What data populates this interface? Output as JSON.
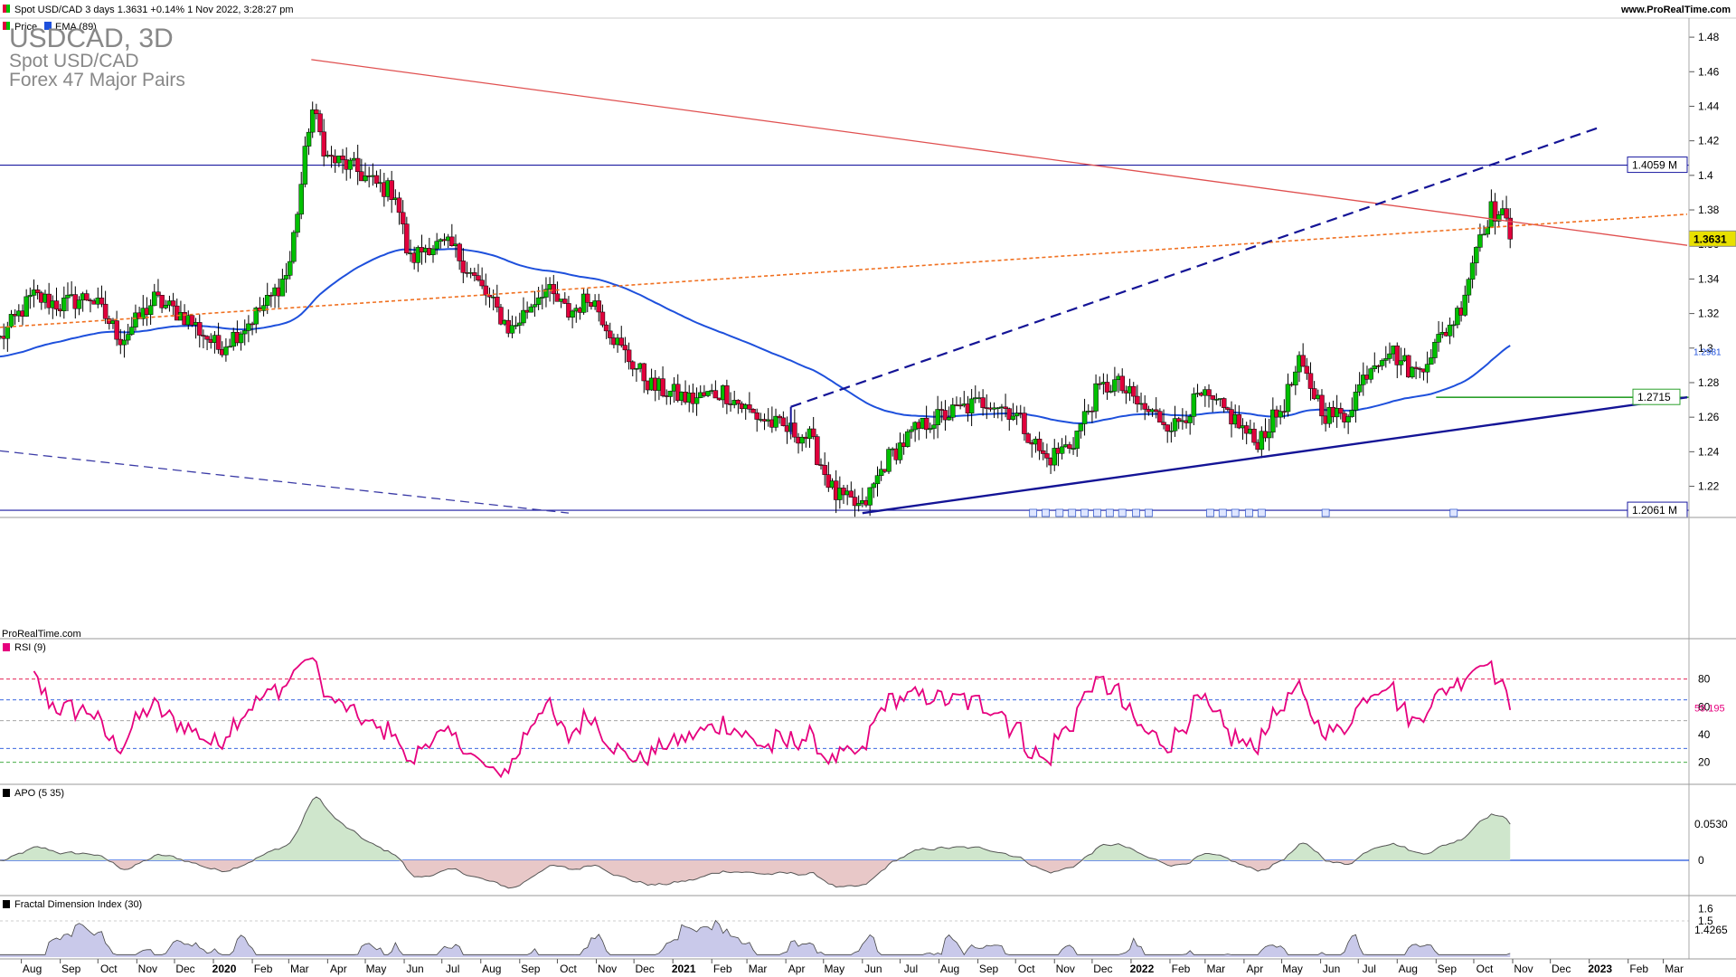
{
  "header": {
    "info": "Spot USD/CAD 3 days 1.3631 +0.14% 1 Nov 2022, 3:28:27 pm",
    "website": "www.ProRealTime.com"
  },
  "legend": {
    "price": "Price",
    "ema": "EMA (89)"
  },
  "title": {
    "symbol": "USDCAD, 3D",
    "name": "Spot USD/CAD",
    "group": "Forex 47 Major Pairs"
  },
  "watermark": "ProRealTime.com",
  "panels": {
    "rsi": {
      "label": "RSI (9)",
      "value": "59.195",
      "ticks": [
        "80",
        "60",
        "40",
        "20"
      ]
    },
    "apo": {
      "label": "APO (5 35)",
      "value": "0.0530",
      "ticks": [
        "0"
      ]
    },
    "fdi": {
      "label": "Fractal Dimension Index (30)",
      "value": "1.4265",
      "ticks": [
        "1.6",
        "1.5"
      ]
    }
  },
  "price_labels": {
    "current": "1.3631",
    "resistance": "1.4059 M",
    "support": "1.2061 M",
    "ema": "1.2981",
    "green_level": "1.2715"
  },
  "colors": {
    "up_candle": "#00c000",
    "down_candle": "#e0003c",
    "ema": "#1e50dc",
    "rsi": "#e6007e",
    "horizontal": "#1a1aa0",
    "red_trend": "#e05050",
    "orange_trend": "#f07020",
    "navy_trend": "#141496",
    "green_level": "#2ca02c",
    "current_bg": "#e8e000"
  },
  "chart_data": {
    "type": "candlestick",
    "period": "3 days",
    "x_range": [
      "2019-07",
      "2023-03"
    ],
    "x_tick_labels": [
      "Aug",
      "Sep",
      "Oct",
      "Nov",
      "Dec",
      "2020",
      "Feb",
      "Mar",
      "Apr",
      "May",
      "Jun",
      "Jul",
      "Aug",
      "Sep",
      "Oct",
      "Nov",
      "Dec",
      "2021",
      "Feb",
      "Mar",
      "Apr",
      "May",
      "Jun",
      "Jul",
      "Aug",
      "Sep",
      "Oct",
      "Nov",
      "Dec",
      "2022",
      "Feb",
      "Mar",
      "Apr",
      "May",
      "Jun",
      "Jul",
      "Aug",
      "Sep",
      "Oct",
      "Nov",
      "Dec",
      "2023",
      "Feb",
      "Mar"
    ],
    "y_tick_labels": [
      "1.48",
      "1.46",
      "1.44",
      "1.42",
      "1.4",
      "1.38",
      "1.36",
      "1.34",
      "1.32",
      "1.3",
      "1.28",
      "1.26",
      "1.24",
      "1.22"
    ],
    "ylim": [
      1.203,
      1.49
    ],
    "ohlc_anchor_close": [
      [
        "2019-07-15",
        1.305
      ],
      [
        "2019-08-10",
        1.33
      ],
      [
        "2019-09-01",
        1.325
      ],
      [
        "2019-09-25",
        1.33
      ],
      [
        "2019-10-20",
        1.305
      ],
      [
        "2019-11-15",
        1.328
      ],
      [
        "2019-12-10",
        1.318
      ],
      [
        "2020-01-05",
        1.3
      ],
      [
        "2020-01-25",
        1.312
      ],
      [
        "2020-02-15",
        1.328
      ],
      [
        "2020-03-01",
        1.345
      ],
      [
        "2020-03-12",
        1.4
      ],
      [
        "2020-03-19",
        1.44
      ],
      [
        "2020-04-01",
        1.41
      ],
      [
        "2020-04-20",
        1.405
      ],
      [
        "2020-05-08",
        1.395
      ],
      [
        "2020-05-25",
        1.39
      ],
      [
        "2020-06-05",
        1.35
      ],
      [
        "2020-06-20",
        1.36
      ],
      [
        "2020-07-10",
        1.358
      ],
      [
        "2020-08-01",
        1.335
      ],
      [
        "2020-08-25",
        1.31
      ],
      [
        "2020-09-20",
        1.335
      ],
      [
        "2020-10-10",
        1.32
      ],
      [
        "2020-10-28",
        1.33
      ],
      [
        "2020-11-20",
        1.3
      ],
      [
        "2020-12-15",
        1.278
      ],
      [
        "2021-01-15",
        1.27
      ],
      [
        "2021-02-10",
        1.275
      ],
      [
        "2021-03-05",
        1.262
      ],
      [
        "2021-03-25",
        1.255
      ],
      [
        "2021-04-20",
        1.248
      ],
      [
        "2021-05-10",
        1.215
      ],
      [
        "2021-06-01",
        1.207
      ],
      [
        "2021-06-20",
        1.235
      ],
      [
        "2021-07-10",
        1.25
      ],
      [
        "2021-07-25",
        1.258
      ],
      [
        "2021-08-20",
        1.265
      ],
      [
        "2021-09-10",
        1.27
      ],
      [
        "2021-10-01",
        1.262
      ],
      [
        "2021-10-25",
        1.235
      ],
      [
        "2021-11-15",
        1.245
      ],
      [
        "2021-12-05",
        1.275
      ],
      [
        "2021-12-20",
        1.28
      ],
      [
        "2022-01-10",
        1.265
      ],
      [
        "2022-02-05",
        1.255
      ],
      [
        "2022-02-25",
        1.272
      ],
      [
        "2022-03-20",
        1.262
      ],
      [
        "2022-04-10",
        1.245
      ],
      [
        "2022-05-01",
        1.265
      ],
      [
        "2022-05-15",
        1.29
      ],
      [
        "2022-06-05",
        1.262
      ],
      [
        "2022-06-20",
        1.26
      ],
      [
        "2022-07-10",
        1.29
      ],
      [
        "2022-07-25",
        1.3
      ],
      [
        "2022-08-15",
        1.285
      ],
      [
        "2022-08-30",
        1.3
      ],
      [
        "2022-09-20",
        1.322
      ],
      [
        "2022-10-05",
        1.365
      ],
      [
        "2022-10-15",
        1.38
      ],
      [
        "2022-10-25",
        1.375
      ],
      [
        "2022-11-01",
        1.3631
      ]
    ],
    "indicators": {
      "ema_period": 89,
      "rsi_period": 9,
      "apo_params": [
        5,
        35
      ],
      "fdi_period": 30
    },
    "annotations": [
      {
        "kind": "horizontal",
        "label": "1.4059 M",
        "y": 1.4059
      },
      {
        "kind": "horizontal",
        "label": "1.2061 M",
        "y": 1.2061
      },
      {
        "kind": "horizontal",
        "label": "1.2715",
        "y": 1.2715
      },
      {
        "kind": "trend",
        "from": [
          "2020-03-19",
          1.467
        ],
        "to": [
          "2023-03-20",
          1.3595
        ]
      },
      {
        "kind": "trend-dashed",
        "from": [
          "2019-07-15",
          1.312
        ],
        "to": [
          "2023-03-20",
          1.3775
        ]
      },
      {
        "kind": "trend-dashed",
        "from": [
          "2021-04-05",
          1.266
        ],
        "to": [
          "2023-01-10",
          1.428
        ]
      },
      {
        "kind": "trend",
        "from": [
          "2021-06-01",
          1.2045
        ],
        "to": [
          "2023-03-20",
          1.2715
        ]
      },
      {
        "kind": "trend-dashed",
        "from": [
          "2019-07-15",
          1.2405
        ],
        "to": [
          "2020-10-10",
          1.2045
        ]
      }
    ]
  }
}
